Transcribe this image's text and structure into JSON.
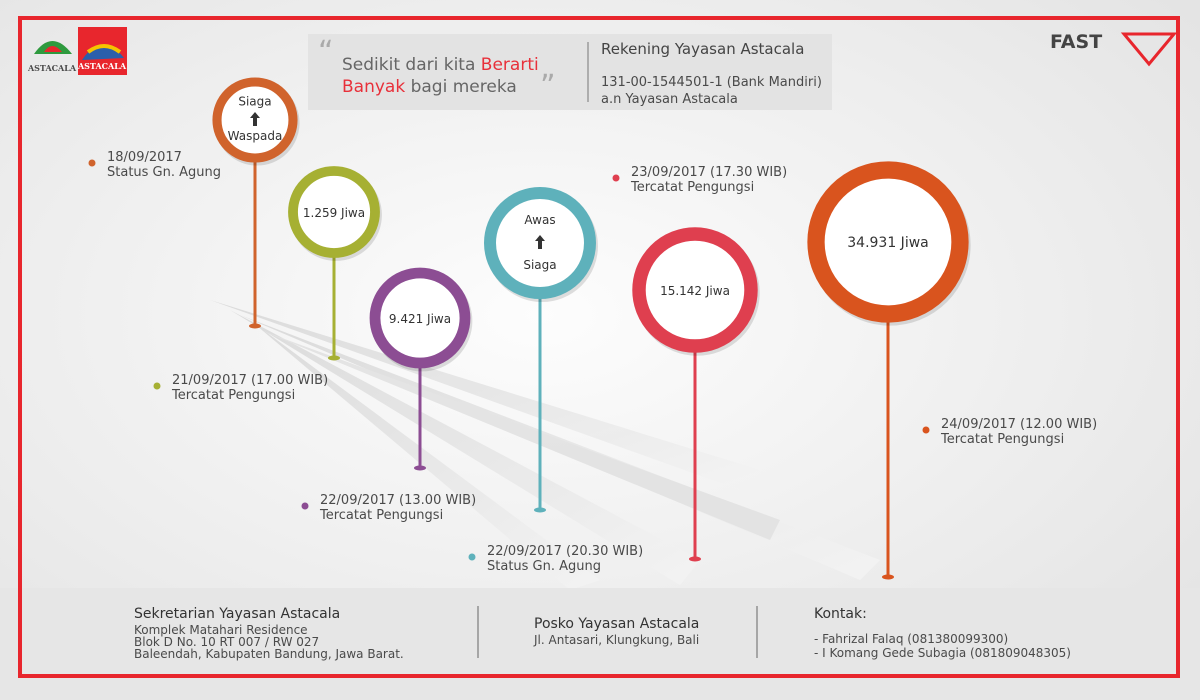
{
  "logos": {
    "left": [
      "ASTACALA",
      "ASTACALA"
    ],
    "right": "FAST"
  },
  "quote": {
    "start": "Sedikit dari kita",
    "accent1": "Berarti",
    "accent2": "Banyak",
    "end": "bagi mereka"
  },
  "account": {
    "title": "Rekening Yayasan Astacala",
    "number": "131-00-1544501-1 (Bank Mandiri)",
    "holder": "a.n Yayasan Astacala"
  },
  "pins": [
    {
      "lines": [
        "Siaga",
        "Waspada"
      ],
      "date": "18/09/2017",
      "note": "Status Gn. Agung",
      "color": "#d0632c"
    },
    {
      "lines": [
        "1.259 Jiwa"
      ],
      "date": "21/09/2017 (17.00 WIB)",
      "note": "Tercatat Pengungsi",
      "color": "#a6b033"
    },
    {
      "lines": [
        "9.421 Jiwa"
      ],
      "date": "22/09/2017 (13.00 WIB)",
      "note": "Tercatat Pengungsi",
      "color": "#8c4d93"
    },
    {
      "lines": [
        "Awas",
        "Siaga"
      ],
      "date": "22/09/2017 (20.30 WIB)",
      "note": "Status Gn. Agung",
      "color": "#5eb1bb"
    },
    {
      "lines": [
        "15.142 Jiwa"
      ],
      "date": "23/09/2017 (17.30 WIB)",
      "note": "Tercatat Pengungsi",
      "color": "#df3f4f"
    },
    {
      "lines": [
        "34.931 Jiwa"
      ],
      "date": "24/09/2017 (12.00 WIB)",
      "note": "Tercatat Pengungsi",
      "color": "#d9541e"
    }
  ],
  "footer": {
    "secretariat": {
      "title": "Sekretarian Yayasan Astacala",
      "lines": [
        "Komplek Matahari Residence",
        "Blok D No. 10 RT 007 / RW 027",
        "Baleendah, Kabupaten Bandung, Jawa Barat."
      ]
    },
    "post": {
      "title": "Posko Yayasan Astacala",
      "lines": [
        "Jl. Antasari, Klungkung, Bali"
      ]
    },
    "contact": {
      "title": "Kontak:",
      "lines": [
        "- Fahrizal Falaq (081380099300)",
        "- I Komang Gede Subagia (081809048305)"
      ]
    }
  }
}
